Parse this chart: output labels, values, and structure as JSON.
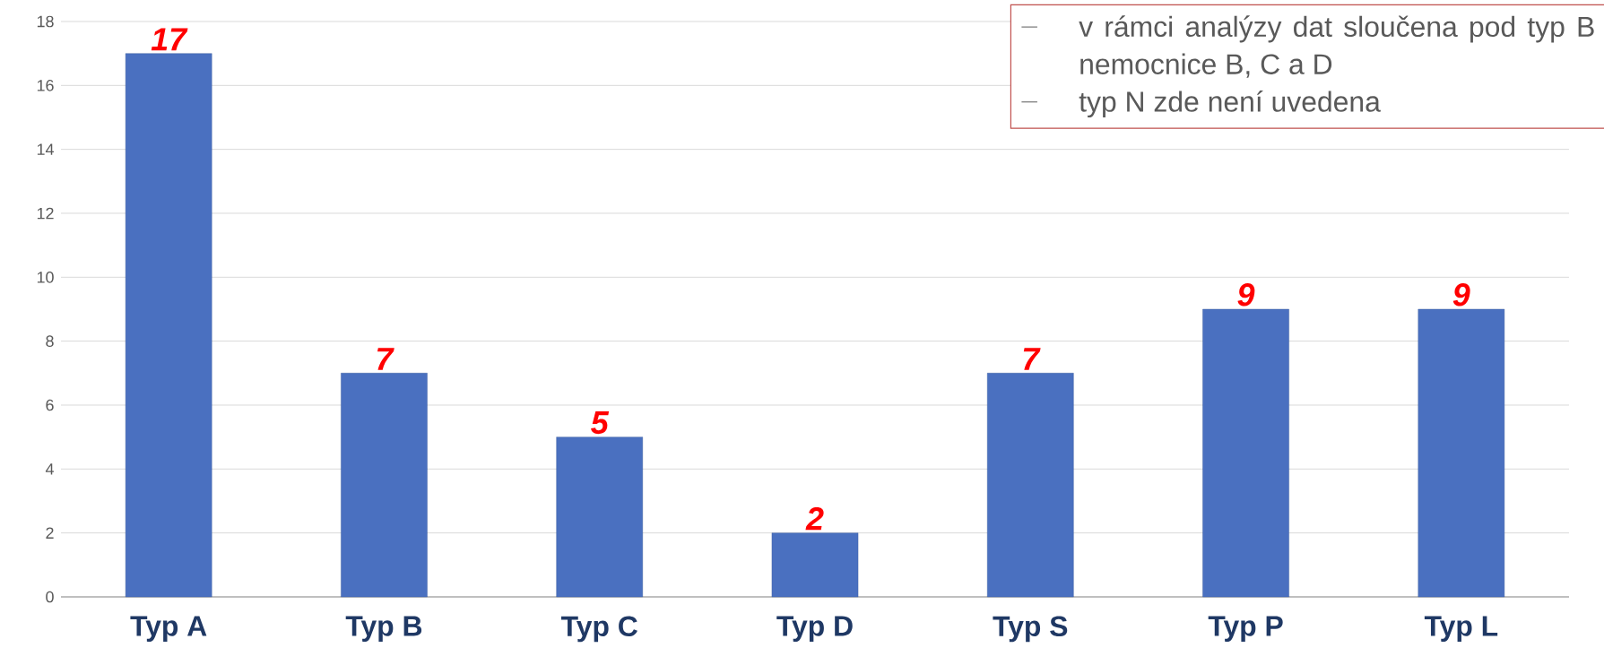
{
  "chart_data": {
    "type": "bar",
    "categories": [
      "Typ A",
      "Typ B",
      "Typ C",
      "Typ D",
      "Typ S",
      "Typ P",
      "Typ L"
    ],
    "values": [
      17,
      7,
      5,
      2,
      7,
      9,
      9
    ],
    "color": "#4a70c0",
    "ylim": [
      0,
      18
    ],
    "yticks": [
      0,
      2,
      4,
      6,
      8,
      10,
      12,
      14,
      16,
      18
    ],
    "grid": "y",
    "data_labels": true,
    "annotations": [
      "v rámci analýzy dat sloučena pod typ B nemocnice B, C a D",
      "typ N zde není uvedena"
    ]
  }
}
